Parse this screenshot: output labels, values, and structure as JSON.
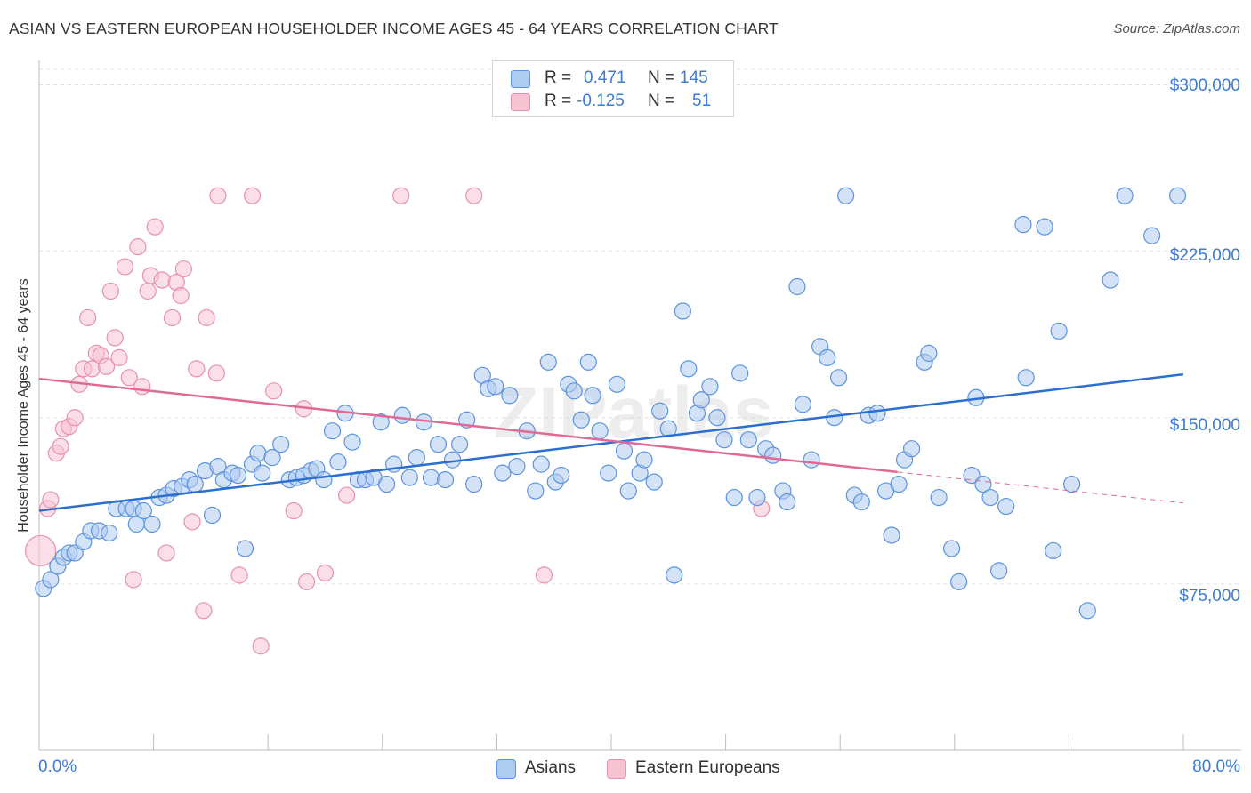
{
  "title": "ASIAN VS EASTERN EUROPEAN HOUSEHOLDER INCOME AGES 45 - 64 YEARS CORRELATION CHART",
  "source": "Source: ZipAtlas.com",
  "watermark": "ZIPatlas",
  "colors": {
    "asian_fill": "#aecbf0",
    "asian_stroke": "#5b93dd",
    "asian_line": "#2a6fcf",
    "eu_fill": "#f7c3d3",
    "eu_stroke": "#e592ad",
    "eu_line": "#e06996",
    "axis_text": "#3d7bd1",
    "grid": "#e0e0e0"
  },
  "stats": {
    "asian": {
      "r_label": "R =",
      "r_value": "0.471",
      "n_label": "N =",
      "n_value": "145"
    },
    "eu": {
      "r_label": "R =",
      "r_value": "-0.125",
      "n_label": "N =",
      "n_value": "51"
    }
  },
  "legend": {
    "asian": "Asians",
    "eu": "Eastern Europeans"
  },
  "chart_data": {
    "type": "scatter",
    "title": "ASIAN VS EASTERN EUROPEAN HOUSEHOLDER INCOME AGES 45 - 64 YEARS CORRELATION CHART",
    "xlabel": "",
    "ylabel": "Householder Income Ages 45 - 64 years",
    "xlim": [
      0,
      80
    ],
    "ylim": [
      0,
      307000
    ],
    "x_tick_labels": [
      "0.0%",
      "80.0%"
    ],
    "y_ticks": [
      75000,
      150000,
      225000,
      300000
    ],
    "y_tick_labels": [
      "$75,000",
      "$150,000",
      "$225,000",
      "$300,000"
    ],
    "grid": true,
    "legend_position": "bottom-center",
    "series": [
      {
        "name": "Asians",
        "trend": {
          "x": [
            0,
            80
          ],
          "y": [
            108000,
            169500
          ]
        },
        "points": [
          [
            0.3,
            73000
          ],
          [
            0.8,
            77000
          ],
          [
            1.3,
            83000
          ],
          [
            1.7,
            87000
          ],
          [
            2.1,
            89000
          ],
          [
            2.5,
            89000
          ],
          [
            3.1,
            94000
          ],
          [
            3.6,
            99000
          ],
          [
            4.2,
            99000
          ],
          [
            4.9,
            98000
          ],
          [
            5.4,
            109000
          ],
          [
            6.1,
            109000
          ],
          [
            6.6,
            109000
          ],
          [
            6.8,
            102000
          ],
          [
            7.3,
            108000
          ],
          [
            7.9,
            102000
          ],
          [
            8.4,
            114000
          ],
          [
            8.9,
            115000
          ],
          [
            9.4,
            118000
          ],
          [
            10.0,
            119000
          ],
          [
            10.5,
            122000
          ],
          [
            10.9,
            120000
          ],
          [
            11.6,
            126000
          ],
          [
            12.1,
            106000
          ],
          [
            12.5,
            128000
          ],
          [
            12.9,
            122000
          ],
          [
            13.5,
            125000
          ],
          [
            13.9,
            124000
          ],
          [
            14.4,
            91000
          ],
          [
            14.9,
            129000
          ],
          [
            15.3,
            134000
          ],
          [
            15.6,
            125000
          ],
          [
            16.3,
            132000
          ],
          [
            16.9,
            138000
          ],
          [
            17.5,
            122000
          ],
          [
            18.0,
            123000
          ],
          [
            18.5,
            124000
          ],
          [
            19.0,
            126000
          ],
          [
            19.4,
            127000
          ],
          [
            19.9,
            122000
          ],
          [
            20.5,
            144000
          ],
          [
            20.9,
            130000
          ],
          [
            21.4,
            152000
          ],
          [
            21.9,
            139000
          ],
          [
            22.3,
            122000
          ],
          [
            22.8,
            122000
          ],
          [
            23.4,
            123000
          ],
          [
            23.9,
            148000
          ],
          [
            24.3,
            120000
          ],
          [
            24.8,
            129000
          ],
          [
            25.4,
            151000
          ],
          [
            25.9,
            123000
          ],
          [
            26.4,
            132000
          ],
          [
            26.9,
            148000
          ],
          [
            27.4,
            123000
          ],
          [
            27.9,
            138000
          ],
          [
            28.4,
            122000
          ],
          [
            28.9,
            131000
          ],
          [
            29.4,
            138000
          ],
          [
            29.9,
            149000
          ],
          [
            30.4,
            120000
          ],
          [
            31.0,
            169000
          ],
          [
            31.4,
            163000
          ],
          [
            31.9,
            164000
          ],
          [
            32.4,
            125000
          ],
          [
            32.9,
            160000
          ],
          [
            33.4,
            128000
          ],
          [
            34.1,
            144000
          ],
          [
            34.7,
            117000
          ],
          [
            35.1,
            129000
          ],
          [
            35.6,
            175000
          ],
          [
            36.1,
            121000
          ],
          [
            36.5,
            124000
          ],
          [
            37.0,
            165000
          ],
          [
            37.4,
            162000
          ],
          [
            37.9,
            149000
          ],
          [
            38.4,
            175000
          ],
          [
            38.7,
            160000
          ],
          [
            39.2,
            144000
          ],
          [
            39.8,
            125000
          ],
          [
            40.4,
            165000
          ],
          [
            40.9,
            135000
          ],
          [
            41.2,
            117000
          ],
          [
            42.0,
            125000
          ],
          [
            42.3,
            131000
          ],
          [
            43.0,
            121000
          ],
          [
            43.4,
            153000
          ],
          [
            44.0,
            145000
          ],
          [
            44.4,
            79000
          ],
          [
            45.0,
            198000
          ],
          [
            45.4,
            172000
          ],
          [
            46.0,
            152000
          ],
          [
            46.3,
            158000
          ],
          [
            46.9,
            164000
          ],
          [
            47.4,
            150000
          ],
          [
            47.9,
            140000
          ],
          [
            48.6,
            114000
          ],
          [
            49.0,
            170000
          ],
          [
            49.6,
            140000
          ],
          [
            50.2,
            114000
          ],
          [
            50.8,
            136000
          ],
          [
            51.3,
            133000
          ],
          [
            52.0,
            117000
          ],
          [
            52.3,
            112000
          ],
          [
            53.0,
            209000
          ],
          [
            53.4,
            156000
          ],
          [
            54.0,
            131000
          ],
          [
            54.6,
            182000
          ],
          [
            55.1,
            177000
          ],
          [
            55.6,
            150000
          ],
          [
            55.9,
            168000
          ],
          [
            56.4,
            250000
          ],
          [
            57.0,
            115000
          ],
          [
            57.5,
            112000
          ],
          [
            58.0,
            151000
          ],
          [
            58.6,
            152000
          ],
          [
            59.2,
            117000
          ],
          [
            59.6,
            97000
          ],
          [
            60.1,
            120000
          ],
          [
            60.5,
            131000
          ],
          [
            61.0,
            136000
          ],
          [
            61.9,
            175000
          ],
          [
            62.2,
            179000
          ],
          [
            62.9,
            114000
          ],
          [
            63.8,
            91000
          ],
          [
            64.3,
            76000
          ],
          [
            65.2,
            124000
          ],
          [
            65.5,
            159000
          ],
          [
            66.0,
            120000
          ],
          [
            66.5,
            114000
          ],
          [
            67.1,
            81000
          ],
          [
            67.6,
            110000
          ],
          [
            68.8,
            237000
          ],
          [
            69.0,
            168000
          ],
          [
            70.3,
            236000
          ],
          [
            70.9,
            90000
          ],
          [
            71.3,
            189000
          ],
          [
            72.2,
            120000
          ],
          [
            73.3,
            63000
          ],
          [
            74.9,
            212000
          ],
          [
            75.9,
            250000
          ],
          [
            77.8,
            232000
          ],
          [
            79.6,
            250000
          ]
        ]
      },
      {
        "name": "Eastern Europeans",
        "trend": {
          "x": [
            0,
            60
          ],
          "y": [
            167500,
            125500
          ]
        },
        "trend_dashed": {
          "x": [
            60,
            80
          ],
          "y": [
            125500,
            111500
          ]
        },
        "points": [
          [
            0.1,
            90000
          ],
          [
            0.6,
            109000
          ],
          [
            0.8,
            113000
          ],
          [
            1.2,
            134000
          ],
          [
            1.5,
            137000
          ],
          [
            1.7,
            145000
          ],
          [
            2.1,
            146000
          ],
          [
            2.5,
            150000
          ],
          [
            2.8,
            165000
          ],
          [
            3.1,
            172000
          ],
          [
            3.4,
            195000
          ],
          [
            3.7,
            172000
          ],
          [
            4.0,
            179000
          ],
          [
            4.3,
            178000
          ],
          [
            4.7,
            173000
          ],
          [
            5.0,
            207000
          ],
          [
            5.3,
            186000
          ],
          [
            5.6,
            177000
          ],
          [
            6.0,
            218000
          ],
          [
            6.3,
            168000
          ],
          [
            6.6,
            77000
          ],
          [
            6.9,
            227000
          ],
          [
            7.2,
            164000
          ],
          [
            7.6,
            207000
          ],
          [
            7.8,
            214000
          ],
          [
            8.1,
            236000
          ],
          [
            8.6,
            212000
          ],
          [
            8.9,
            89000
          ],
          [
            9.3,
            195000
          ],
          [
            9.6,
            211000
          ],
          [
            9.9,
            205000
          ],
          [
            10.1,
            217000
          ],
          [
            10.7,
            103000
          ],
          [
            11.0,
            172000
          ],
          [
            11.5,
            63000
          ],
          [
            11.7,
            195000
          ],
          [
            12.4,
            170000
          ],
          [
            12.5,
            250000
          ],
          [
            14.0,
            79000
          ],
          [
            14.9,
            250000
          ],
          [
            15.5,
            47000
          ],
          [
            16.4,
            162000
          ],
          [
            17.8,
            108000
          ],
          [
            18.5,
            154000
          ],
          [
            18.7,
            76000
          ],
          [
            20.0,
            80000
          ],
          [
            21.5,
            115000
          ],
          [
            25.3,
            250000
          ],
          [
            30.4,
            250000
          ],
          [
            35.3,
            79000
          ],
          [
            50.5,
            109000
          ]
        ]
      }
    ]
  }
}
